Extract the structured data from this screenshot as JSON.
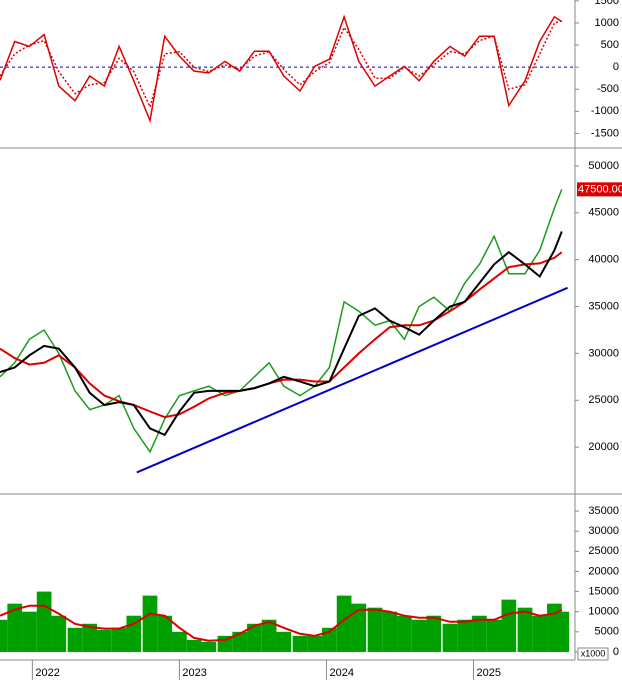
{
  "chart_data": [
    {
      "type": "line",
      "x": [
        2021.78,
        2021.88,
        2021.98,
        2022.08,
        2022.18,
        2022.29,
        2022.39,
        2022.49,
        2022.59,
        2022.69,
        2022.8,
        2022.9,
        2023.0,
        2023.1,
        2023.2,
        2023.31,
        2023.41,
        2023.51,
        2023.61,
        2023.71,
        2023.82,
        2023.92,
        2024.02,
        2024.12,
        2024.22,
        2024.33,
        2024.43,
        2024.53,
        2024.63,
        2024.73,
        2024.84,
        2024.94,
        2025.04,
        2025.14,
        2025.24,
        2025.35,
        2025.45,
        2025.55,
        2025.6
      ],
      "xlim": [
        2021.78,
        2025.69
      ],
      "ylim": [
        -1830,
        1520
      ],
      "yticks": [
        1500,
        1000,
        500,
        0,
        -500,
        -1000,
        -1500
      ],
      "hline": {
        "value": 0,
        "color": "#0000cc"
      },
      "series": [
        {
          "color": "#dd0000",
          "values": [
            -300,
            580,
            470,
            740,
            -430,
            -760,
            -200,
            -430,
            470,
            -310,
            -1210,
            700,
            250,
            -90,
            -130,
            130,
            -90,
            360,
            360,
            -200,
            -540,
            20,
            180,
            1140,
            130,
            -430,
            -200,
            20,
            -310,
            130,
            470,
            250,
            700,
            700,
            -870,
            -310,
            580,
            1140,
            1030
          ]
        },
        {
          "color": "#dd0000",
          "style": "dashed",
          "values": [
            -200,
            300,
            500,
            600,
            -100,
            -600,
            -400,
            -350,
            200,
            -100,
            -900,
            300,
            350,
            0,
            -100,
            50,
            -50,
            250,
            350,
            -50,
            -400,
            -100,
            100,
            900,
            400,
            -250,
            -250,
            0,
            -200,
            50,
            350,
            300,
            600,
            700,
            -500,
            -400,
            300,
            1000,
            1050
          ]
        }
      ]
    },
    {
      "type": "line",
      "x": [
        2021.78,
        2021.88,
        2021.98,
        2022.08,
        2022.18,
        2022.29,
        2022.39,
        2022.49,
        2022.59,
        2022.69,
        2022.8,
        2022.9,
        2023.0,
        2023.1,
        2023.2,
        2023.31,
        2023.41,
        2023.51,
        2023.61,
        2023.71,
        2023.82,
        2023.92,
        2024.02,
        2024.12,
        2024.22,
        2024.33,
        2024.43,
        2024.53,
        2024.63,
        2024.73,
        2024.84,
        2024.94,
        2025.04,
        2025.14,
        2025.24,
        2025.35,
        2025.45,
        2025.55,
        2025.6
      ],
      "xlim": [
        2021.78,
        2025.69
      ],
      "ylim": [
        15000,
        51700
      ],
      "yticks": [
        50000,
        45000,
        40000,
        35000,
        30000,
        25000,
        20000
      ],
      "last_price": {
        "value": 47500,
        "label": "47500.00"
      },
      "series": [
        {
          "color": "#1e9a1e",
          "width": 1.5,
          "values": [
            27500,
            29000,
            31500,
            32500,
            30000,
            26000,
            24000,
            24500,
            25500,
            22000,
            19500,
            23000,
            25500,
            26000,
            26500,
            25500,
            26000,
            27500,
            29000,
            26500,
            25500,
            26500,
            28500,
            35500,
            34500,
            33000,
            33500,
            31500,
            35000,
            36000,
            34500,
            37500,
            39500,
            42500,
            38500,
            38500,
            41000,
            45500,
            47500
          ]
        },
        {
          "color": "#dd0000",
          "width": 2,
          "values": [
            30500,
            29500,
            28800,
            29000,
            29800,
            28500,
            26800,
            25500,
            24900,
            24500,
            23800,
            23200,
            23500,
            24300,
            25200,
            25800,
            26000,
            26300,
            26800,
            27200,
            27200,
            27000,
            27000,
            28500,
            30000,
            31500,
            32800,
            33000,
            33000,
            33500,
            34500,
            35500,
            36800,
            38000,
            39200,
            39500,
            39600,
            40200,
            40800
          ]
        },
        {
          "color": "#000000",
          "width": 2,
          "values": [
            28000,
            28500,
            29800,
            30800,
            30500,
            28500,
            25800,
            24500,
            24800,
            24500,
            22000,
            21300,
            23800,
            25800,
            26000,
            26000,
            26000,
            26300,
            26800,
            27500,
            27000,
            26500,
            27000,
            30500,
            34000,
            34800,
            33500,
            32800,
            32000,
            33500,
            35000,
            35500,
            37500,
            39500,
            40800,
            39500,
            38200,
            41000,
            43000
          ]
        },
        {
          "color": "#0000cc",
          "width": 2,
          "x": [
            2022.71,
            2025.64
          ],
          "values": [
            17300,
            37000
          ]
        }
      ]
    },
    {
      "type": "bar",
      "x": [
        2021.78,
        2021.88,
        2021.98,
        2022.08,
        2022.18,
        2022.29,
        2022.39,
        2022.49,
        2022.59,
        2022.69,
        2022.8,
        2022.9,
        2023.0,
        2023.1,
        2023.2,
        2023.31,
        2023.41,
        2023.51,
        2023.61,
        2023.71,
        2023.82,
        2023.92,
        2024.02,
        2024.12,
        2024.22,
        2024.33,
        2024.43,
        2024.53,
        2024.63,
        2024.73,
        2024.84,
        2024.94,
        2025.04,
        2025.14,
        2025.24,
        2025.35,
        2025.45,
        2025.55,
        2025.6
      ],
      "xlim": [
        2021.78,
        2025.69
      ],
      "xticks": [
        2022,
        2023,
        2024,
        2025
      ],
      "ylim": [
        -2000,
        38750
      ],
      "yticks": [
        35000,
        30000,
        25000,
        20000,
        15000,
        10000,
        5000,
        0
      ],
      "y_unit": "x1000",
      "color": "#00a000",
      "values": [
        8000,
        12000,
        10000,
        15000,
        9000,
        6000,
        7000,
        5500,
        6000,
        9000,
        14000,
        9000,
        5000,
        3000,
        2500,
        4000,
        5000,
        7000,
        8000,
        5000,
        4000,
        4000,
        6000,
        14000,
        12000,
        11000,
        10000,
        9000,
        8000,
        9000,
        7000,
        8000,
        9000,
        8000,
        13000,
        11000,
        9000,
        12000,
        10000
      ],
      "ma": {
        "color": "#dd0000",
        "values": [
          9000,
          10500,
          11500,
          11500,
          9500,
          7000,
          6200,
          5800,
          5800,
          7000,
          9500,
          9000,
          6000,
          3500,
          2800,
          3000,
          4500,
          6500,
          7500,
          6000,
          4500,
          4000,
          5000,
          8000,
          10500,
          10500,
          10000,
          9000,
          8500,
          8500,
          7500,
          7500,
          8000,
          8000,
          9500,
          10000,
          9000,
          9500,
          10500
        ]
      }
    }
  ]
}
